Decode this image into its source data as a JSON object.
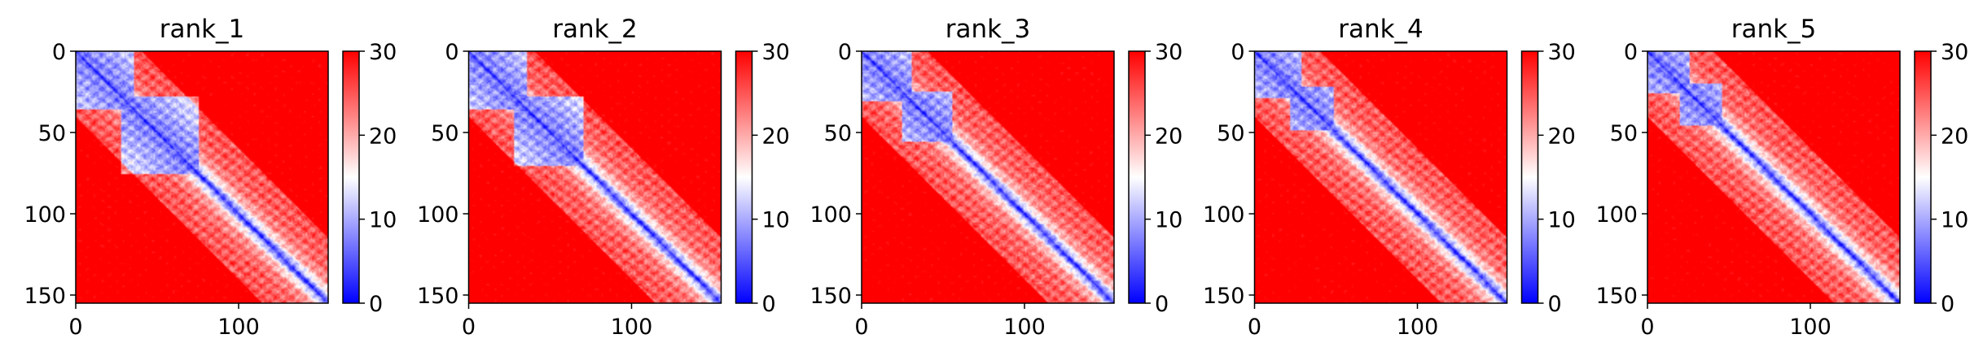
{
  "chart_data": [
    {
      "type": "heatmap",
      "title": "rank_1",
      "xlim": [
        0,
        155
      ],
      "ylim": [
        155,
        0
      ],
      "x_ticks": [
        "0",
        "100"
      ],
      "y_ticks": [
        "0",
        "50",
        "100",
        "150"
      ],
      "colorbar": {
        "cmap": "bwr",
        "range": [
          0,
          30
        ],
        "ticks": [
          "0",
          "10",
          "20",
          "30"
        ]
      },
      "domains": [
        [
          0,
          35
        ],
        [
          28,
          75
        ]
      ]
    },
    {
      "type": "heatmap",
      "title": "rank_2",
      "xlim": [
        0,
        155
      ],
      "ylim": [
        155,
        0
      ],
      "x_ticks": [
        "0",
        "100"
      ],
      "y_ticks": [
        "0",
        "50",
        "100",
        "150"
      ],
      "colorbar": {
        "cmap": "bwr",
        "range": [
          0,
          30
        ],
        "ticks": [
          "0",
          "10",
          "20",
          "30"
        ]
      },
      "domains": [
        [
          0,
          35
        ],
        [
          28,
          70
        ]
      ]
    },
    {
      "type": "heatmap",
      "title": "rank_3",
      "xlim": [
        0,
        155
      ],
      "ylim": [
        155,
        0
      ],
      "x_ticks": [
        "0",
        "100"
      ],
      "y_ticks": [
        "0",
        "50",
        "100",
        "150"
      ],
      "colorbar": {
        "cmap": "bwr",
        "range": [
          0,
          30
        ],
        "ticks": [
          "0",
          "10",
          "20",
          "30"
        ]
      },
      "domains": [
        [
          0,
          30
        ],
        [
          25,
          55
        ]
      ]
    },
    {
      "type": "heatmap",
      "title": "rank_4",
      "xlim": [
        0,
        155
      ],
      "ylim": [
        155,
        0
      ],
      "x_ticks": [
        "0",
        "100"
      ],
      "y_ticks": [
        "0",
        "50",
        "100",
        "150"
      ],
      "colorbar": {
        "cmap": "bwr",
        "range": [
          0,
          30
        ],
        "ticks": [
          "0",
          "10",
          "20",
          "30"
        ]
      },
      "domains": [
        [
          0,
          28
        ],
        [
          22,
          48
        ]
      ]
    },
    {
      "type": "heatmap",
      "title": "rank_5",
      "xlim": [
        0,
        155
      ],
      "ylim": [
        155,
        0
      ],
      "x_ticks": [
        "0",
        "100"
      ],
      "y_ticks": [
        "0",
        "50",
        "100",
        "150"
      ],
      "colorbar": {
        "cmap": "bwr",
        "range": [
          0,
          30
        ],
        "ticks": [
          "0",
          "10",
          "20",
          "30"
        ]
      },
      "domains": [
        [
          0,
          25
        ],
        [
          20,
          45
        ]
      ]
    }
  ]
}
